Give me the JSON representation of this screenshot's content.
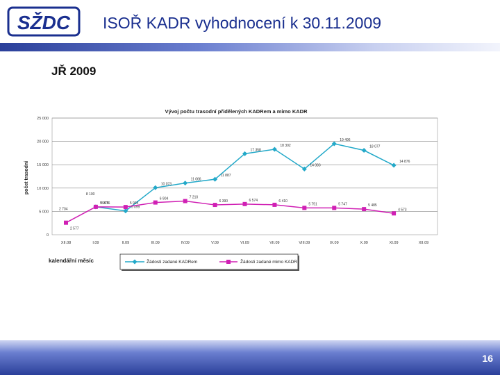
{
  "slide": {
    "title": "ISOŘ KADR vyhodnocení k 30.11.2009",
    "subtitle": "JŘ 2009",
    "page_number": "16",
    "logo_text": "SŽDC"
  },
  "colors": {
    "brand": "#1a2f8f",
    "series_kadr": "#23a9c9",
    "series_mimo": "#d020b4"
  },
  "chart_data": {
    "type": "line",
    "title": "Vývoj počtu trasodní přidělených KADRem a mimo KADR",
    "ylabel": "počet trasodní",
    "xlabel": "kalendářní měsíc",
    "ylim": [
      0,
      25000
    ],
    "yticks": [
      "0",
      "5 000",
      "10 000",
      "15 000",
      "20 000",
      "25 000"
    ],
    "categories": [
      "XII.08",
      "I.09",
      "II.09",
      "III.09",
      "IV.09",
      "V.09",
      "VI.09",
      "VII.09",
      "VIII.09",
      "IX.09",
      "X.09",
      "XI.09",
      "XII.09"
    ],
    "series": [
      {
        "name": "Žádosti zadané KADRem",
        "values": [
          null,
          5976,
          5099,
          10073,
          11066,
          11887,
          17358,
          18302,
          14083,
          19496,
          18077,
          14876,
          null
        ],
        "labels": [
          "",
          "5 976",
          "5 099",
          "10 073",
          "11 066",
          "11 887",
          "17 358",
          "18 302",
          "14 083",
          "19 496",
          "18 077",
          "14 876",
          ""
        ]
      },
      {
        "name": "Žádosti zadané mimo KADR",
        "values": [
          2577,
          5976,
          5933,
          6904,
          7210,
          6390,
          6574,
          6410,
          5751,
          5747,
          5485,
          4573,
          null
        ],
        "labels": [
          "2 577",
          "5 976",
          "5 933",
          "6 904",
          "7 210",
          "6 390",
          "6 574",
          "6 410",
          "5 751",
          "5 747",
          "5 485",
          "4 573",
          ""
        ]
      }
    ],
    "extra_labels": [
      {
        "text": "2 704"
      },
      {
        "text": "8 100"
      }
    ]
  }
}
